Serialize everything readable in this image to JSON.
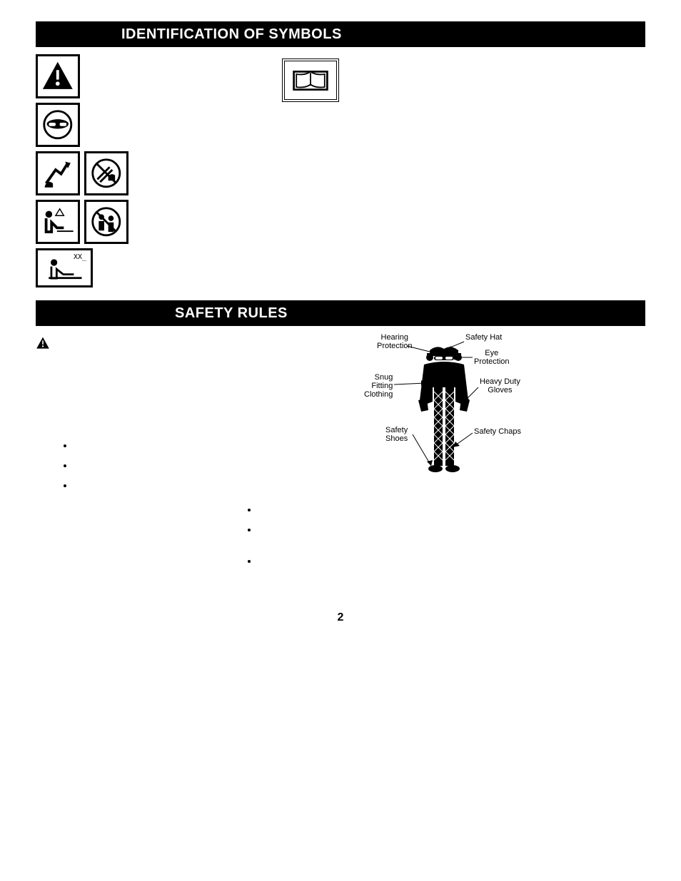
{
  "headings": {
    "identification": "IDENTIFICATION OF SYMBOLS",
    "safety_rules": "SAFETY RULES"
  },
  "symbol_grid": {
    "xx_label": "XX_",
    "rows": [
      [
        "warning-triangle"
      ],
      [
        "eye-protection"
      ],
      [
        "kickback-hand",
        "no-hand-saw"
      ],
      [
        "operator-danger",
        "no-bystanders"
      ],
      [
        "sound-level"
      ]
    ],
    "book_icon": "read-manual-icon"
  },
  "safety_figure": {
    "labels": {
      "hearing": "Hearing\nProtection",
      "hat": "Safety Hat",
      "eye": "Eye\nProtection",
      "clothing": "Snug\nFitting\nClothing",
      "gloves": "Heavy Duty\nGloves",
      "shoes": "Safety\nShoes",
      "chaps": "Safety Chaps"
    },
    "colors": {
      "figure_fill": "#000000",
      "chaps_pattern": "#8a8a8a",
      "line": "#000000",
      "text": "#000000"
    },
    "label_fontsize": 11
  },
  "page_number": "2",
  "colors": {
    "band_bg": "#000000",
    "band_text": "#ffffff",
    "page_bg": "#ffffff",
    "border": "#000000"
  }
}
